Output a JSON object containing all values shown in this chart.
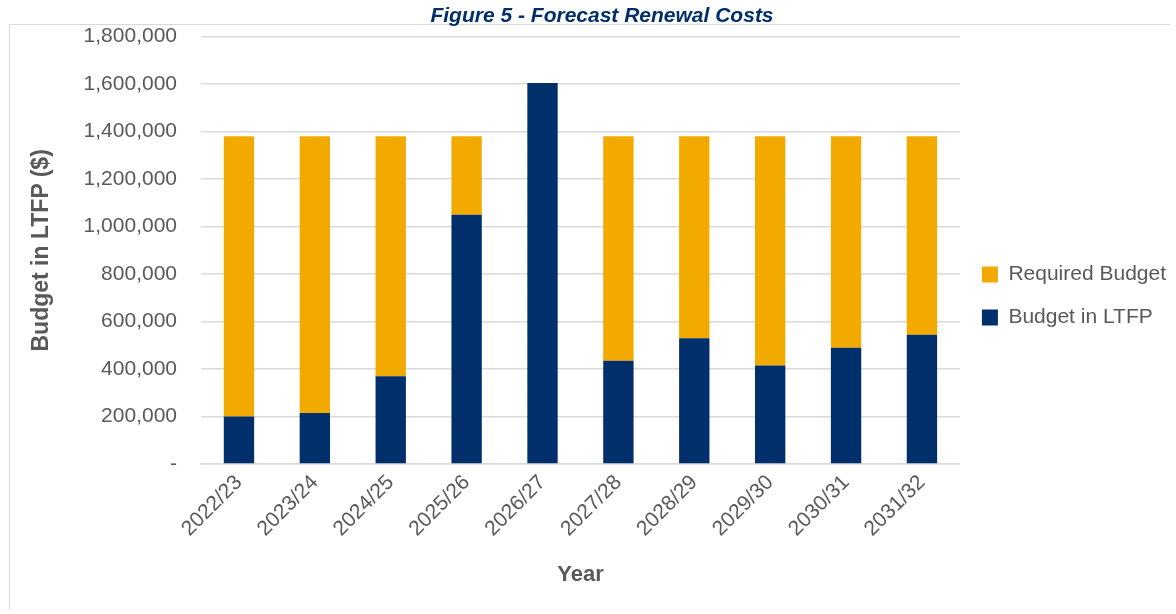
{
  "chart_data": {
    "type": "bar",
    "title": "Figure 5 - Forecast Renewal Costs",
    "xlabel": "Year",
    "ylabel": "Budget in LTFP ($)",
    "categories": [
      "2022/23",
      "2023/24",
      "2024/25",
      "2025/26",
      "2026/27",
      "2027/28",
      "2028/29",
      "2029/30",
      "2030/31",
      "2031/32"
    ],
    "series": [
      {
        "name": "Budget in LTFP",
        "color": "#002f6c",
        "values": [
          200000,
          215000,
          370000,
          1050000,
          1605000,
          435000,
          530000,
          415000,
          490000,
          545000
        ]
      },
      {
        "name": "Required Budget",
        "color": "#f2aa00",
        "values": [
          1180000,
          1165000,
          1010000,
          330000,
          null,
          945000,
          850000,
          965000,
          890000,
          835000
        ]
      }
    ],
    "stacked": true,
    "ylim": [
      0,
      1800000
    ],
    "yticks": [
      {
        "value": 0,
        "label": "-"
      },
      {
        "value": 200000,
        "label": "200,000"
      },
      {
        "value": 400000,
        "label": "400,000"
      },
      {
        "value": 600000,
        "label": "600,000"
      },
      {
        "value": 800000,
        "label": "800,000"
      },
      {
        "value": 1000000,
        "label": "1,000,000"
      },
      {
        "value": 1200000,
        "label": "1,200,000"
      },
      {
        "value": 1400000,
        "label": "1,400,000"
      },
      {
        "value": 1600000,
        "label": "1,600,000"
      },
      {
        "value": 1800000,
        "label": "1,800,000"
      }
    ],
    "grid": "y",
    "legend": "right"
  }
}
